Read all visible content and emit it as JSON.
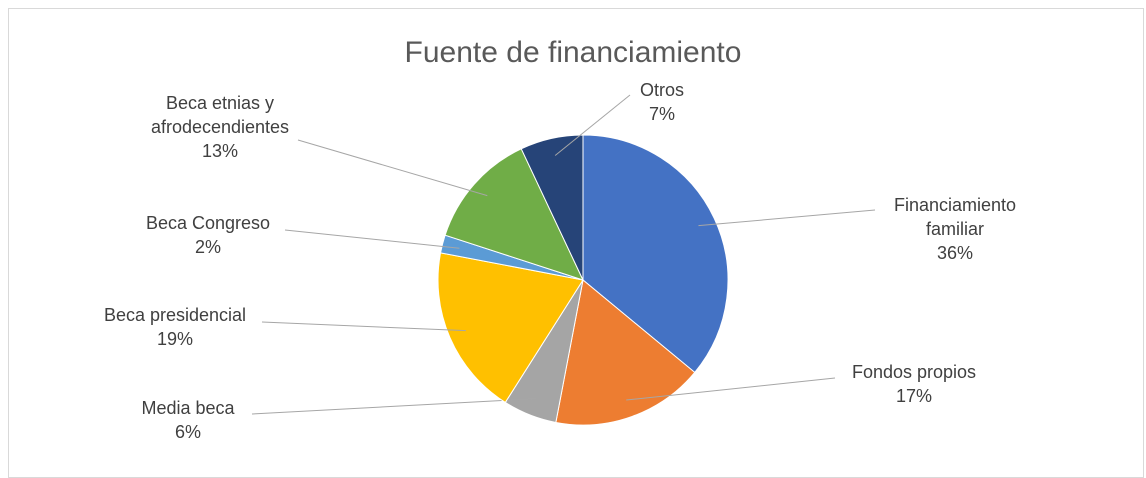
{
  "chart_data": {
    "type": "pie",
    "title": "Fuente de financiamiento",
    "categories": [
      "Financiamiento familiar",
      "Fondos propios",
      "Media beca",
      "Beca presidencial",
      "Beca Congreso",
      "Beca etnias y afrodecendientes",
      "Otros"
    ],
    "values": [
      36,
      17,
      6,
      19,
      2,
      13,
      7
    ],
    "value_labels": [
      "36%",
      "17%",
      "6%",
      "19%",
      "2%",
      "13%",
      "7%"
    ],
    "colors": [
      "#4472c4",
      "#ed7d31",
      "#a5a5a5",
      "#ffc000",
      "#5b9bd5",
      "#70ad47",
      "#264478"
    ]
  }
}
